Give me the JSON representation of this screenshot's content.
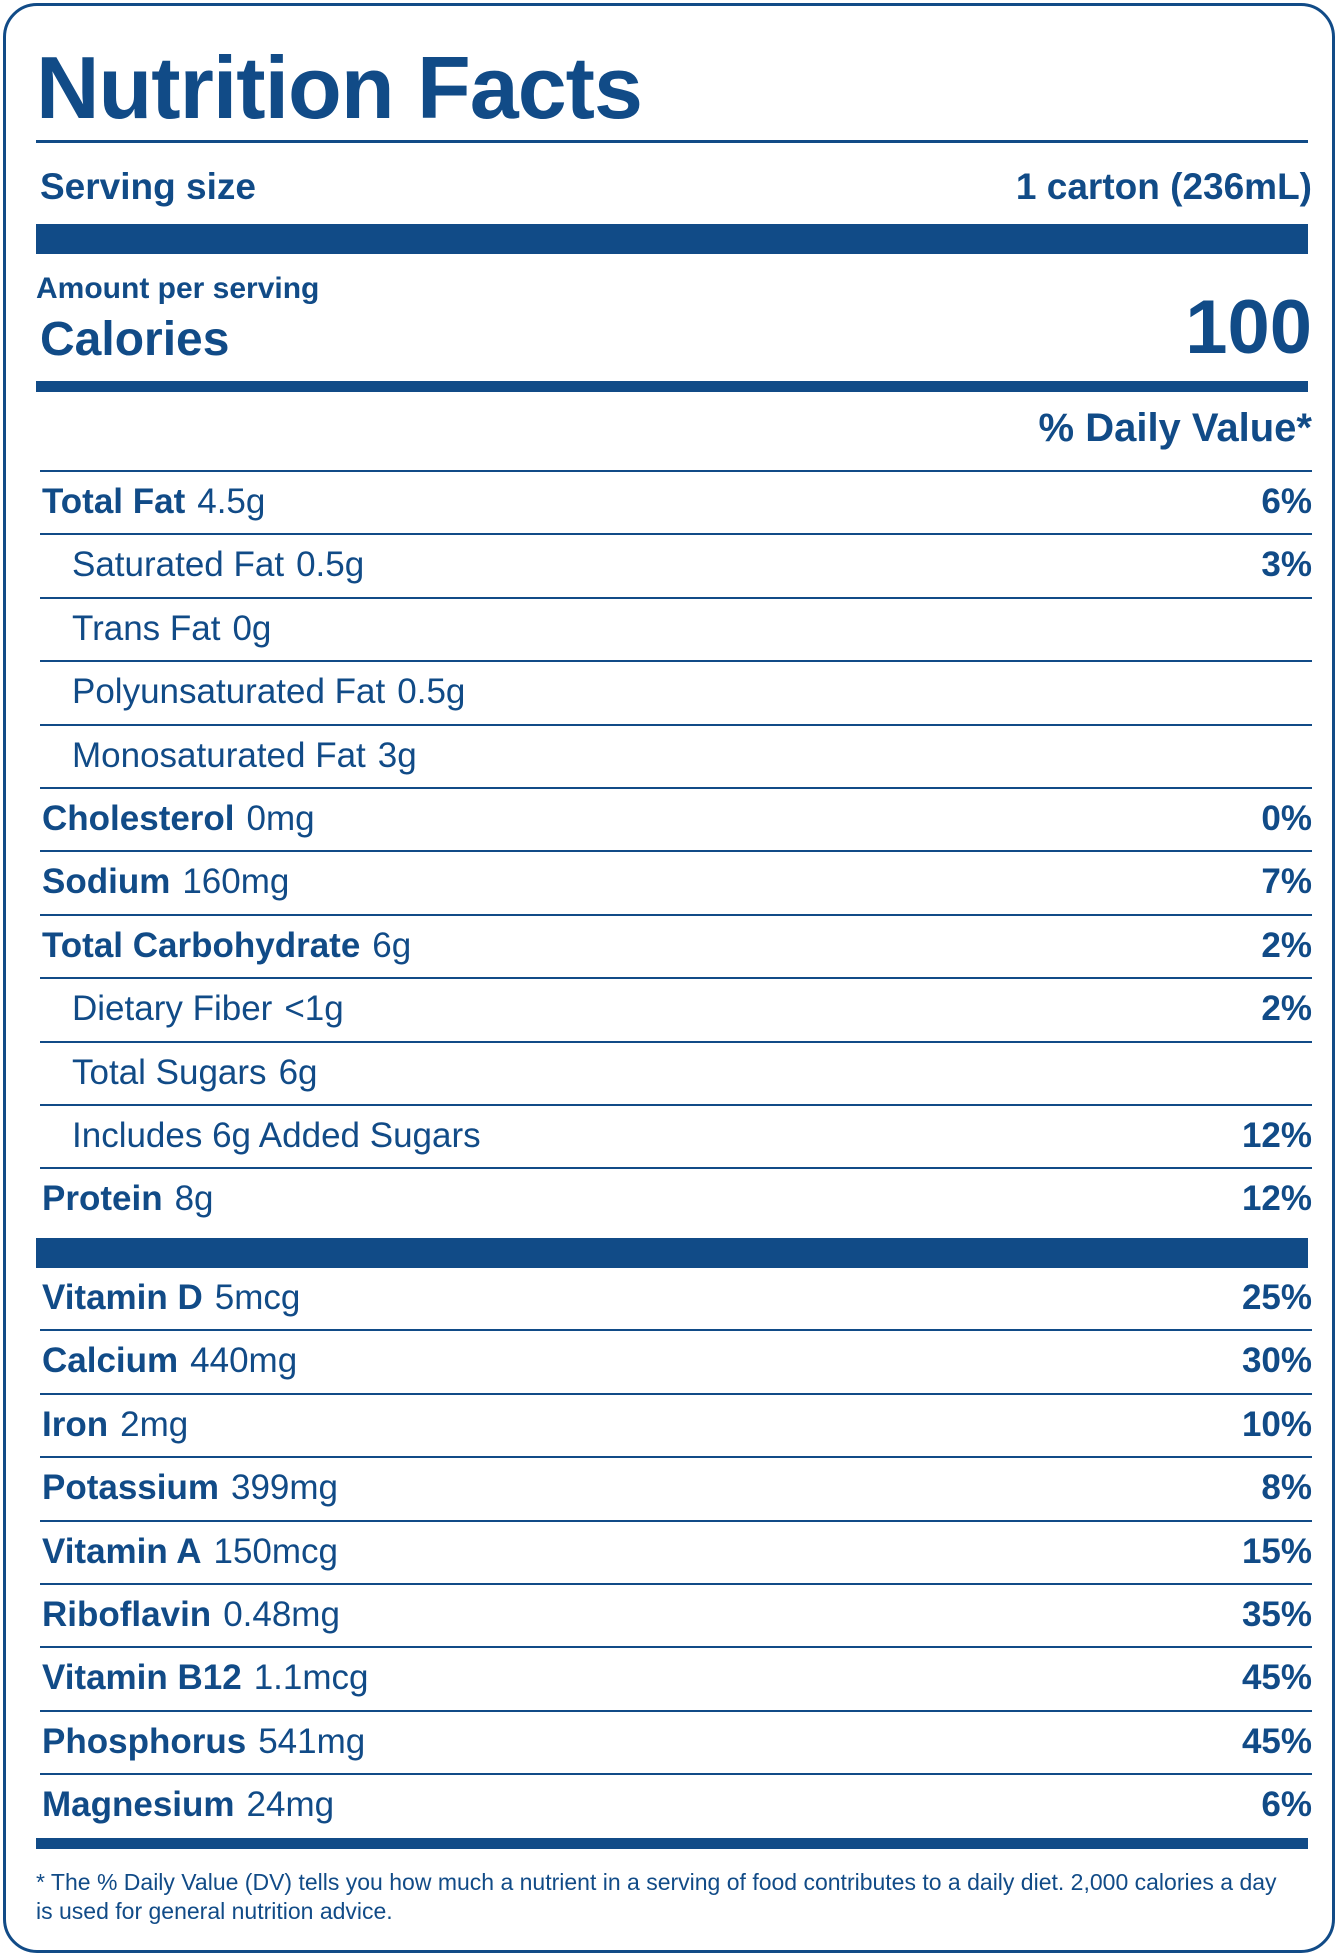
{
  "title": "Nutrition Facts",
  "serving": {
    "label": "Serving size",
    "value": "1 carton (236mL)"
  },
  "amount_per_serving": "Amount per serving",
  "calories": {
    "label": "Calories",
    "value": "100"
  },
  "dv_header": "% Daily Value*",
  "nutrients": [
    {
      "name": "Total Fat",
      "amount": "4.5g",
      "dv": "6%",
      "bold": true,
      "indent": false
    },
    {
      "name": "Saturated Fat",
      "amount": "0.5g",
      "dv": "3%",
      "bold": false,
      "indent": true
    },
    {
      "name": "Trans Fat",
      "amount": "0g",
      "dv": "",
      "bold": false,
      "indent": true
    },
    {
      "name": "Polyunsaturated Fat",
      "amount": "0.5g",
      "dv": "",
      "bold": false,
      "indent": true
    },
    {
      "name": "Monosaturated Fat",
      "amount": "3g",
      "dv": "",
      "bold": false,
      "indent": true
    },
    {
      "name": "Cholesterol",
      "amount": "0mg",
      "dv": "0%",
      "bold": true,
      "indent": false
    },
    {
      "name": "Sodium",
      "amount": "160mg",
      "dv": "7%",
      "bold": true,
      "indent": false
    },
    {
      "name": "Total Carbohydrate",
      "amount": "6g",
      "dv": "2%",
      "bold": true,
      "indent": false
    },
    {
      "name": "Dietary Fiber",
      "amount": "<1g",
      "dv": "2%",
      "bold": false,
      "indent": true
    },
    {
      "name": "Total Sugars",
      "amount": "6g",
      "dv": "",
      "bold": false,
      "indent": true
    },
    {
      "name": "Includes 6g Added Sugars",
      "amount": "",
      "dv": "12%",
      "bold": false,
      "indent": true
    },
    {
      "name": "Protein",
      "amount": "8g",
      "dv": "12%",
      "bold": true,
      "indent": false
    }
  ],
  "vitamins": [
    {
      "name": "Vitamin D",
      "amount": "5mcg",
      "dv": "25%"
    },
    {
      "name": "Calcium",
      "amount": "440mg",
      "dv": "30%"
    },
    {
      "name": "Iron",
      "amount": "2mg",
      "dv": "10%"
    },
    {
      "name": "Potassium",
      "amount": "399mg",
      "dv": "8%"
    },
    {
      "name": "Vitamin A",
      "amount": "150mcg",
      "dv": "15%"
    },
    {
      "name": "Riboflavin",
      "amount": "0.48mg",
      "dv": "35%"
    },
    {
      "name": "Vitamin B12",
      "amount": "1.1mcg",
      "dv": "45%"
    },
    {
      "name": "Phosphorus",
      "amount": "541mg",
      "dv": "45%"
    },
    {
      "name": "Magnesium",
      "amount": "24mg",
      "dv": "6%"
    }
  ],
  "footnote": "* The % Daily Value (DV) tells you how much a nutrient in a serving of food contributes to a daily diet. 2,000 calories a day is used for general nutrition advice.",
  "colors": {
    "primary": "#114b87",
    "background": "#ffffff"
  }
}
